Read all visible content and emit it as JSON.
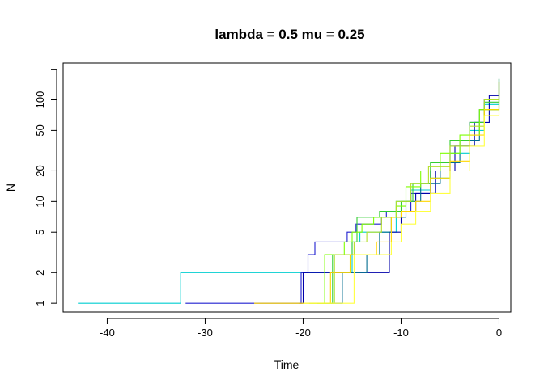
{
  "chart_data": {
    "type": "line",
    "title": "lambda = 0.5 mu = 0.25",
    "xlabel": "Time",
    "ylabel": "N",
    "xlim": [
      -44.5,
      1.2
    ],
    "ylim_log": [
      0.82,
      230
    ],
    "y_scale": "log",
    "grid": false,
    "xticks": [
      -40,
      -30,
      -20,
      -10,
      0
    ],
    "xtick_labels": [
      "-40",
      "-30",
      "-20",
      "-10",
      "0"
    ],
    "yticks": [
      1,
      2,
      5,
      10,
      20,
      50,
      100
    ],
    "ytick_labels": [
      "1",
      "2",
      "5",
      "10",
      "20",
      "50",
      "100"
    ],
    "series": [
      {
        "color": "#00ced1",
        "points": [
          [
            -43,
            1
          ],
          [
            -32.5,
            2
          ],
          [
            -15,
            4
          ],
          [
            -14.2,
            5
          ],
          [
            -10.5,
            10
          ],
          [
            -9,
            13
          ],
          [
            -7,
            17
          ],
          [
            -5,
            30
          ],
          [
            -3,
            50
          ],
          [
            -1.5,
            90
          ],
          [
            0,
            160
          ]
        ]
      },
      {
        "color": "#2020d0",
        "points": [
          [
            -32,
            1
          ],
          [
            -20.2,
            2
          ],
          [
            -19.5,
            3
          ],
          [
            -18.8,
            4
          ],
          [
            -15.5,
            5
          ],
          [
            -14.6,
            6
          ],
          [
            -12,
            7
          ],
          [
            -11.5,
            8
          ],
          [
            -9,
            12
          ],
          [
            -7,
            20
          ],
          [
            -5,
            35
          ],
          [
            -3,
            60
          ],
          [
            -1.5,
            100
          ],
          [
            0,
            160
          ]
        ]
      },
      {
        "color": "#0000aa",
        "points": [
          [
            -20.4,
            1
          ],
          [
            -20,
            2
          ],
          [
            -14.5,
            2
          ],
          [
            -13,
            2
          ],
          [
            -11.2,
            5
          ],
          [
            -10,
            8
          ],
          [
            -8.5,
            12
          ],
          [
            -6.5,
            20
          ],
          [
            -4.5,
            35
          ],
          [
            -2.5,
            60
          ],
          [
            -1,
            110
          ],
          [
            0,
            150
          ]
        ]
      },
      {
        "color": "#006d8f",
        "points": [
          [
            -18.6,
            1
          ],
          [
            -16,
            2
          ],
          [
            -14.5,
            2
          ],
          [
            -13.5,
            3
          ],
          [
            -12.2,
            5
          ],
          [
            -11,
            7
          ],
          [
            -9.5,
            10
          ],
          [
            -8,
            15
          ],
          [
            -6,
            24
          ],
          [
            -4,
            40
          ],
          [
            -2,
            80
          ],
          [
            0,
            160
          ]
        ]
      },
      {
        "color": "#32cd32",
        "points": [
          [
            -19.4,
            1
          ],
          [
            -17,
            3
          ],
          [
            -15,
            4
          ],
          [
            -14.5,
            7
          ],
          [
            -12.2,
            8
          ],
          [
            -10,
            10
          ],
          [
            -8.8,
            15
          ],
          [
            -7,
            24
          ],
          [
            -5,
            40
          ],
          [
            -3,
            60
          ],
          [
            -1.5,
            95
          ],
          [
            0,
            160
          ]
        ]
      },
      {
        "color": "#7fff00",
        "points": [
          [
            -18.4,
            1
          ],
          [
            -17.8,
            3
          ],
          [
            -15.8,
            4
          ],
          [
            -15,
            5
          ],
          [
            -14,
            6
          ],
          [
            -12.8,
            7
          ],
          [
            -10.5,
            9
          ],
          [
            -9.5,
            14
          ],
          [
            -8,
            20
          ],
          [
            -6,
            30
          ],
          [
            -4,
            45
          ],
          [
            -2,
            80
          ],
          [
            0,
            160
          ]
        ]
      },
      {
        "color": "#b2e02b",
        "points": [
          [
            -17.2,
            1
          ],
          [
            -16.8,
            3
          ],
          [
            -15.5,
            3
          ],
          [
            -14.8,
            4
          ],
          [
            -13.5,
            5
          ],
          [
            -12,
            7
          ],
          [
            -10.5,
            10
          ],
          [
            -9,
            15
          ],
          [
            -7.2,
            22
          ],
          [
            -5,
            35
          ],
          [
            -3,
            55
          ],
          [
            -1.5,
            100
          ],
          [
            0,
            150
          ]
        ]
      },
      {
        "color": "#ffd700",
        "points": [
          [
            -25,
            1
          ],
          [
            -17.2,
            2
          ],
          [
            -15.2,
            3
          ],
          [
            -13.5,
            3
          ],
          [
            -12.5,
            4
          ],
          [
            -11,
            7
          ],
          [
            -10,
            8
          ],
          [
            -8.5,
            10
          ],
          [
            -7,
            17
          ],
          [
            -5,
            25
          ],
          [
            -3,
            45
          ],
          [
            -1.5,
            80
          ],
          [
            0,
            150
          ]
        ]
      },
      {
        "color": "#ffff40",
        "points": [
          [
            -20,
            1
          ],
          [
            -15,
            1
          ],
          [
            -14.8,
            3
          ],
          [
            -12,
            3
          ],
          [
            -11,
            4
          ],
          [
            -10,
            6
          ],
          [
            -8.5,
            8
          ],
          [
            -7,
            12
          ],
          [
            -5,
            20
          ],
          [
            -3,
            35
          ],
          [
            -1.5,
            70
          ],
          [
            0,
            150
          ]
        ]
      }
    ]
  }
}
